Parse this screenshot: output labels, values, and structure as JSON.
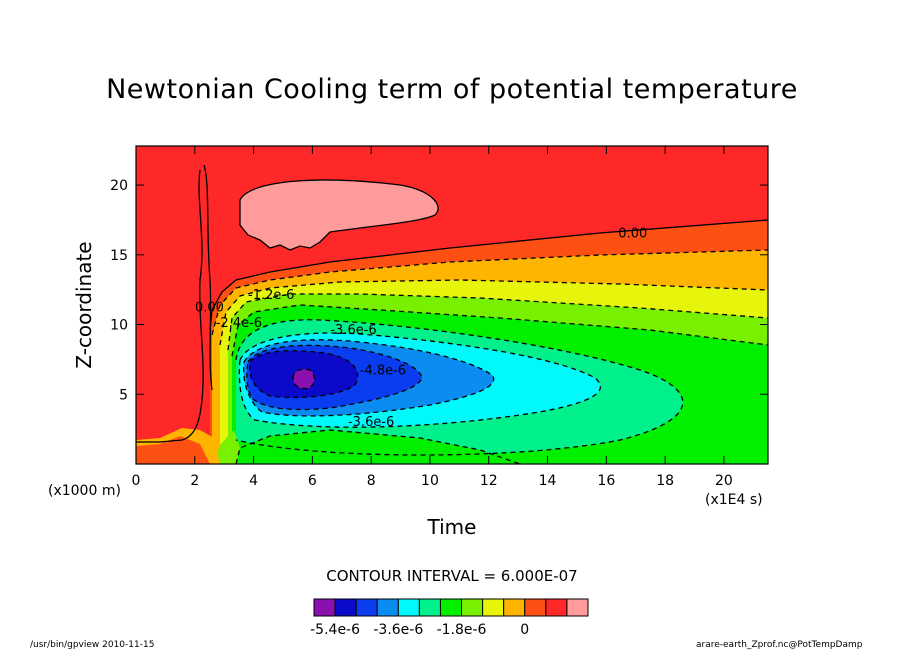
{
  "chart_data": {
    "type": "contour",
    "title": "Newtonian Cooling term of potential temperature",
    "xlabel": "Time",
    "ylabel": "Z-coordinate",
    "x_unit": "(x1E4 s)",
    "y_unit": "(x1000 m)",
    "xlim": [
      0,
      21.5
    ],
    "ylim": [
      0,
      22.8
    ],
    "x_ticks": [
      0,
      2,
      4,
      6,
      8,
      10,
      12,
      14,
      16,
      18,
      20
    ],
    "y_ticks": [
      5,
      10,
      15,
      20
    ],
    "contour_interval_text": "CONTOUR INTERVAL = 6.000E-07",
    "contour_labels": [
      {
        "text": "0.00",
        "x": 16.9,
        "y": 16.3
      },
      {
        "text": "-1.2e-6",
        "x": 4.6,
        "y": 11.9
      },
      {
        "text": "-2.4e-6",
        "x": 3.5,
        "y": 9.9
      },
      {
        "text": "-3.6e-6",
        "x": 7.4,
        "y": 9.4
      },
      {
        "text": "-4.8e-6",
        "x": 8.4,
        "y": 6.5
      },
      {
        "text": "-3.6e-6",
        "x": 8.0,
        "y": 2.8
      },
      {
        "text": "0.00",
        "x": 2.5,
        "y": 11.0
      }
    ],
    "levels": [
      -6e-06,
      -5.4e-06,
      -4.8e-06,
      -4.2e-06,
      -3.6e-06,
      -3e-06,
      -2.4e-06,
      -1.8e-06,
      -1.2e-06,
      -6e-07,
      0,
      6e-07,
      1.2e-06
    ],
    "colorbar_colors": [
      "#8b10b0",
      "#0a0ac8",
      "#0a3cf0",
      "#0a8cf0",
      "#00fafa",
      "#00f08c",
      "#00f000",
      "#78f000",
      "#e6f50a",
      "#ffb400",
      "#ff5014",
      "#ff2828",
      "#ff9b9b"
    ],
    "colorbar_labels": [
      "-5.4e-6",
      "-3.6e-6",
      "-1.8e-6",
      "0"
    ]
  },
  "footer": {
    "left": "/usr/bin/gpview  2010-11-15",
    "right": "arare-earth_Zprof.nc@PotTempDamp"
  }
}
